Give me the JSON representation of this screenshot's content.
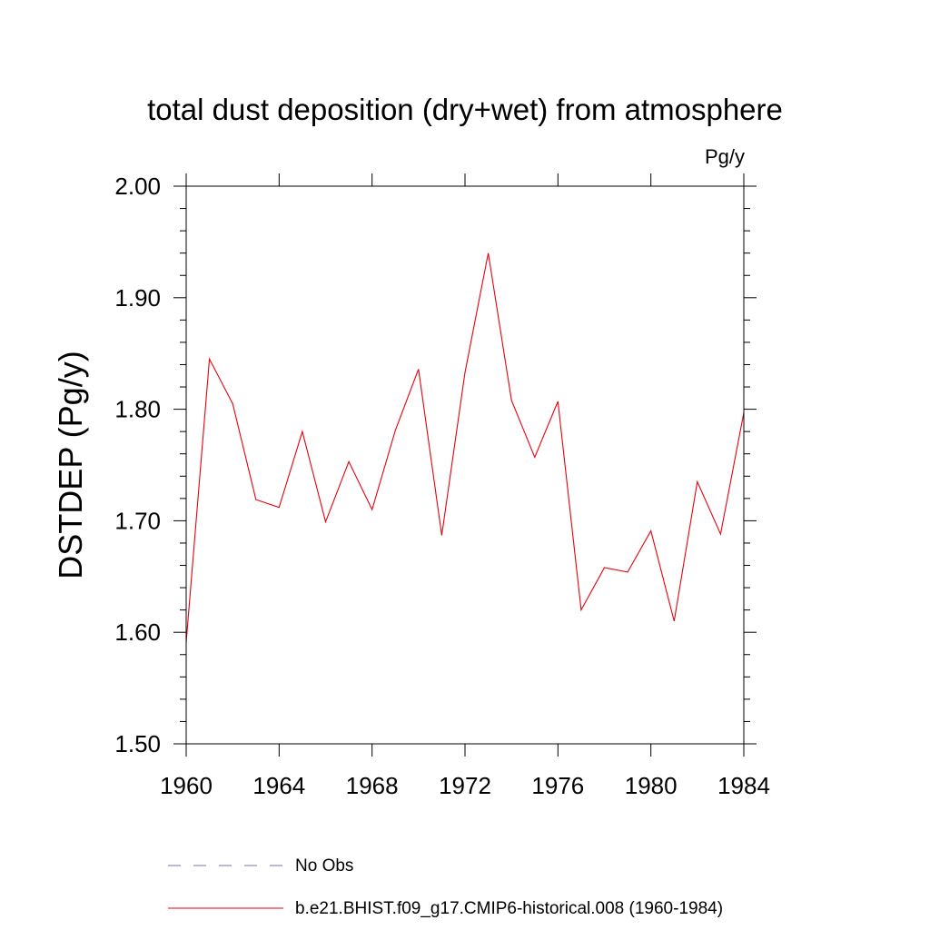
{
  "chart_data": {
    "type": "line",
    "title": "total dust deposition (dry+wet) from atmosphere",
    "units_label": "Pg/y",
    "ylabel": "DSTDEP  (Pg/y)",
    "xlabel": "",
    "xlim": [
      1960,
      1984
    ],
    "ylim": [
      1.5,
      2.0
    ],
    "x_ticks": [
      1960,
      1964,
      1968,
      1972,
      1976,
      1980,
      1984
    ],
    "x_tick_labels": [
      "1960",
      "1964",
      "1968",
      "1972",
      "1976",
      "1980",
      "1984"
    ],
    "y_ticks": [
      1.5,
      1.6,
      1.7,
      1.8,
      1.9,
      2.0
    ],
    "y_tick_labels": [
      "1.50",
      "1.60",
      "1.70",
      "1.80",
      "1.90",
      "2.00"
    ],
    "grid": false,
    "legend_position": "bottom",
    "series": [
      {
        "name": "b.e21.BHIST.f09_g17.CMIP6-historical.008 (1960-1984)",
        "color": "#e8000b",
        "style": "solid",
        "x": [
          1960,
          1961,
          1962,
          1963,
          1964,
          1965,
          1966,
          1967,
          1968,
          1969,
          1970,
          1971,
          1972,
          1973,
          1974,
          1975,
          1976,
          1977,
          1978,
          1979,
          1980,
          1981,
          1982,
          1983,
          1984
        ],
        "y": [
          1.591,
          1.845,
          1.805,
          1.719,
          1.712,
          1.78,
          1.699,
          1.753,
          1.71,
          1.781,
          1.836,
          1.687,
          1.833,
          1.94,
          1.808,
          1.757,
          1.807,
          1.62,
          1.658,
          1.654,
          1.691,
          1.61,
          1.735,
          1.688,
          1.797
        ]
      }
    ],
    "legend": [
      {
        "label": "No Obs",
        "color": "#7b6fb0",
        "style": "dashed"
      },
      {
        "label": "b.e21.BHIST.f09_g17.CMIP6-historical.008 (1960-1984)",
        "color": "#e8000b",
        "style": "solid"
      }
    ]
  }
}
